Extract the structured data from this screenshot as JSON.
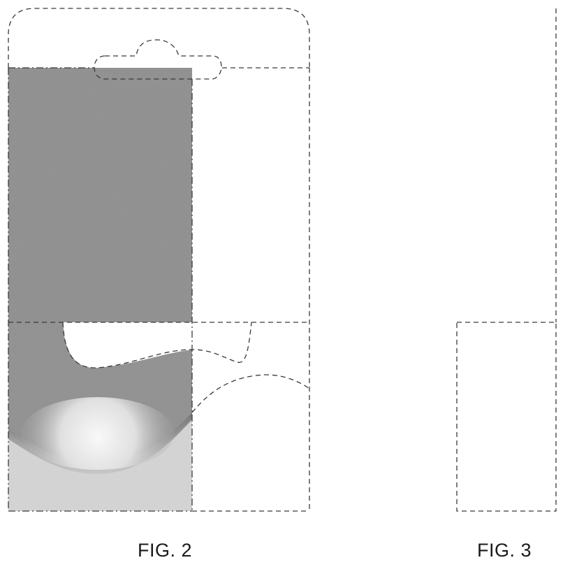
{
  "figures": [
    {
      "id": "fig2",
      "label": "FIG. 2"
    },
    {
      "id": "fig3",
      "label": "FIG. 3"
    }
  ],
  "colors": {
    "line": "#3a3a3a",
    "shading_dark": "#8e8e8e",
    "shading_light": "#d4d4d4",
    "background": "#ffffff"
  }
}
